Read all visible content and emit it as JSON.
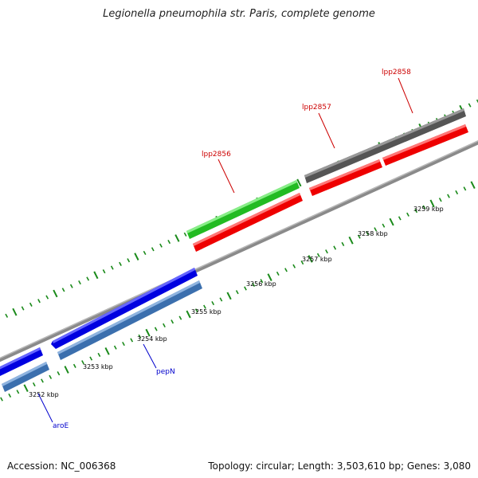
{
  "title": "Legionella pneumophila str. Paris, complete genome",
  "footer": {
    "accession": "Accession: NC_006368",
    "summary": "Topology: circular; Length: 3,503,610 bp; Genes: 3,080"
  },
  "scale": {
    "unit": "kbp",
    "labels": [
      "3252 kbp",
      "3253 kbp",
      "3254 kbp",
      "3255 kbp",
      "3256 kbp",
      "3257 kbp",
      "3258 kbp",
      "3259 kbp"
    ]
  },
  "genes": [
    {
      "name": "aroE",
      "color": "#0000cc"
    },
    {
      "name": "pepN",
      "color": "#0000cc"
    },
    {
      "name": "lpp2856",
      "color": "#cc0000"
    },
    {
      "name": "lpp2857",
      "color": "#cc0000"
    },
    {
      "name": "lpp2858",
      "color": "#cc0000"
    }
  ],
  "colors": {
    "forward_blue": "#1a1aff",
    "reverse_steelblue": "#4a7fbf",
    "green": "#33cc33",
    "red": "#ff0000",
    "gray": "#666666",
    "tick_green": "#1a8a1a",
    "backbone": "#999999"
  }
}
